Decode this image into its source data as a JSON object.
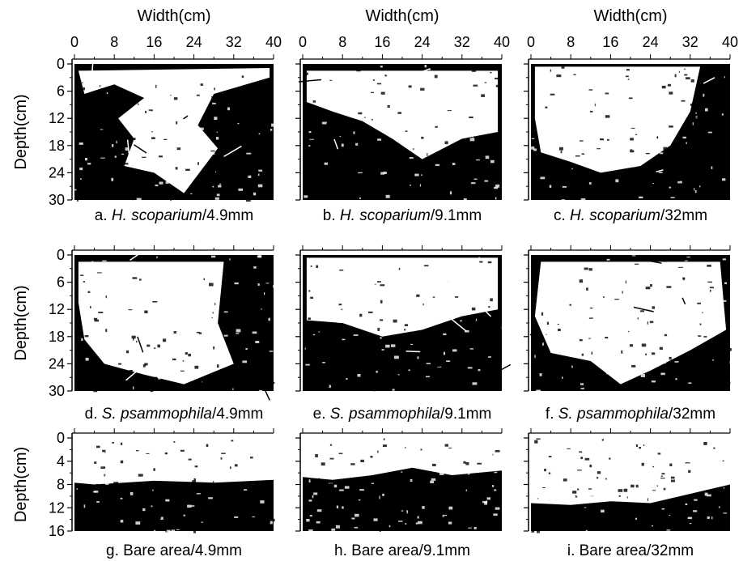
{
  "width_axis_label": "Width(cm)",
  "depth_axis_label": "Depth(cm)",
  "width_ticks": [
    "0",
    "8",
    "16",
    "24",
    "32",
    "40"
  ],
  "depth_ticks_rows_1_2": [
    "0",
    "6",
    "12",
    "18",
    "24",
    "30"
  ],
  "depth_ticks_row_3": [
    "0",
    "4",
    "8",
    "12",
    "16"
  ],
  "panels": [
    {
      "id": "a",
      "prefix": "a. ",
      "species": "H. scoparium",
      "suffix": "/4.9mm"
    },
    {
      "id": "b",
      "prefix": "b. ",
      "species": "H. scoparium",
      "suffix": "/9.1mm"
    },
    {
      "id": "c",
      "prefix": "c. ",
      "species": "H. scoparium",
      "suffix": "/32mm"
    },
    {
      "id": "d",
      "prefix": "d. ",
      "species": "S. psammophila",
      "suffix": "/4.9mm"
    },
    {
      "id": "e",
      "prefix": "e. ",
      "species": "S. psammophila",
      "suffix": "/9.1mm"
    },
    {
      "id": "f",
      "prefix": "f. ",
      "species": "S. psammophila",
      "suffix": "/32mm"
    },
    {
      "id": "g",
      "prefix": "g. ",
      "species": "",
      "suffix": "Bare area/4.9mm"
    },
    {
      "id": "h",
      "prefix": "h. ",
      "species": "",
      "suffix": "Bare area/9.1mm"
    },
    {
      "id": "i",
      "prefix": "i. ",
      "species": "",
      "suffix": "Bare area/32mm"
    }
  ],
  "colors": {
    "dry_soil": "#000000",
    "stained_flow": "#ffffff",
    "frame": "#000000"
  }
}
